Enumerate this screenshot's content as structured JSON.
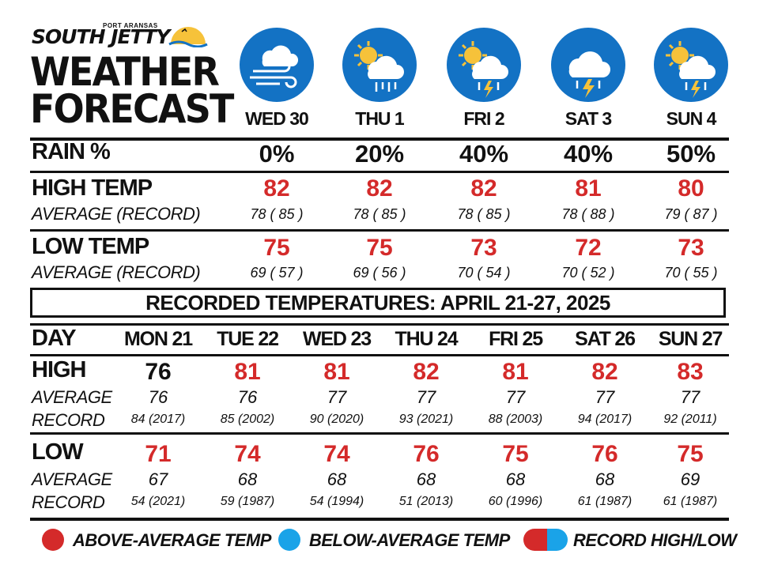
{
  "header": {
    "brand_small": "PORT ARANSAS",
    "brand": "SOUTH JETTY",
    "title_line1": "WEATHER",
    "title_line2": "FORECAST"
  },
  "forecast": {
    "days": [
      {
        "label": "WED 30",
        "icon": "wind-cloud-icon",
        "rain": "0%",
        "high": "82",
        "high_avg_rec": "78 ( 85 )",
        "low": "75",
        "low_avg_rec": "69 ( 57 )"
      },
      {
        "label": "THU 1",
        "icon": "sun-cloud-rain-icon",
        "rain": "20%",
        "high": "82",
        "high_avg_rec": "78 ( 85 )",
        "low": "75",
        "low_avg_rec": "69 ( 56 )"
      },
      {
        "label": "FRI 2",
        "icon": "sun-cloud-storm-icon",
        "rain": "40%",
        "high": "82",
        "high_avg_rec": "78 ( 85 )",
        "low": "73",
        "low_avg_rec": "70 ( 54 )"
      },
      {
        "label": "SAT 3",
        "icon": "cloud-storm-icon",
        "rain": "40%",
        "high": "81",
        "high_avg_rec": "78 ( 88 )",
        "low": "72",
        "low_avg_rec": "70 ( 52 )"
      },
      {
        "label": "SUN 4",
        "icon": "sun-cloud-storm-icon",
        "rain": "50%",
        "high": "80",
        "high_avg_rec": "79 ( 87 )",
        "low": "73",
        "low_avg_rec": "70 ( 55 )"
      }
    ],
    "rain_label": "RAIN %",
    "high_label": "HIGH TEMP",
    "low_label": "LOW TEMP",
    "avg_rec_label": "AVERAGE (RECORD)"
  },
  "recorded": {
    "banner": "RECORDED TEMPERATURES: APRIL 21-27, 2025",
    "day_label": "DAY",
    "high_label": "HIGH",
    "low_label": "LOW",
    "average_label": "AVERAGE",
    "record_label": "RECORD",
    "days": [
      {
        "label": "MON 21",
        "high": "76",
        "high_color": "#111111",
        "high_avg": "76",
        "high_rec": "84 (2017)",
        "low": "71",
        "low_avg": "67",
        "low_rec": "54 (2021)"
      },
      {
        "label": "TUE 22",
        "high": "81",
        "high_color": "#d42a2a",
        "high_avg": "76",
        "high_rec": "85 (2002)",
        "low": "74",
        "low_avg": "68",
        "low_rec": "59 (1987)"
      },
      {
        "label": "WED 23",
        "high": "81",
        "high_color": "#d42a2a",
        "high_avg": "77",
        "high_rec": "90 (2020)",
        "low": "74",
        "low_avg": "68",
        "low_rec": "54 (1994)"
      },
      {
        "label": "THU 24",
        "high": "82",
        "high_color": "#d42a2a",
        "high_avg": "77",
        "high_rec": "93 (2021)",
        "low": "76",
        "low_avg": "68",
        "low_rec": "51 (2013)"
      },
      {
        "label": "FRI 25",
        "high": "81",
        "high_color": "#d42a2a",
        "high_avg": "77",
        "high_rec": "88 (2003)",
        "low": "75",
        "low_avg": "68",
        "low_rec": "60 (1996)"
      },
      {
        "label": "SAT 26",
        "high": "82",
        "high_color": "#d42a2a",
        "high_avg": "77",
        "high_rec": "94 (2017)",
        "low": "76",
        "low_avg": "68",
        "low_rec": "61 (1987)"
      },
      {
        "label": "SUN 27",
        "high": "83",
        "high_color": "#d42a2a",
        "high_avg": "77",
        "high_rec": "92 (2011)",
        "low": "75",
        "low_avg": "69",
        "low_rec": "61 (1987)"
      }
    ]
  },
  "legend": {
    "above": "ABOVE-AVERAGE TEMP",
    "below": "BELOW-AVERAGE TEMP",
    "record": "RECORD HIGH/LOW"
  },
  "colors": {
    "red": "#d42a2a",
    "blue": "#1aa3e8",
    "icon_blue": "#1372c4",
    "sun": "#f6c23a",
    "black": "#111111"
  }
}
